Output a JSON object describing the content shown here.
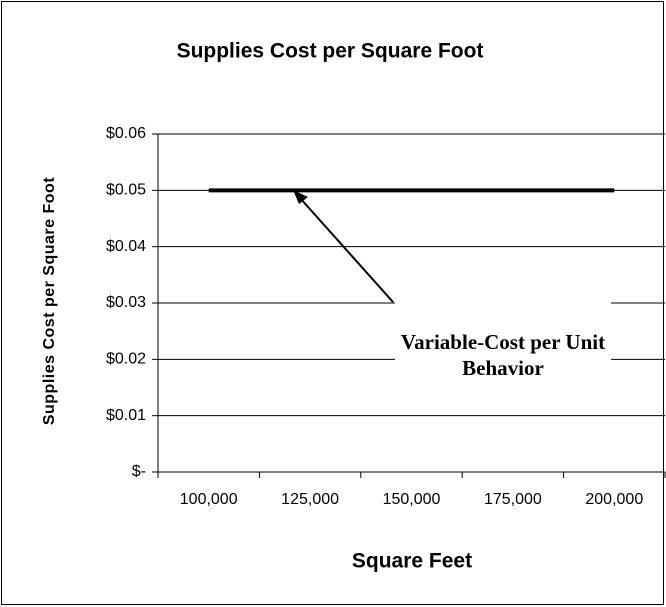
{
  "chart_data": {
    "type": "line",
    "title": "Supplies Cost per Square Foot",
    "x_label": "Square Feet",
    "y_label": "Supplies Cost per Square Foot",
    "categories": [
      "100,000",
      "125,000",
      "150,000",
      "175,000",
      "200,000"
    ],
    "series": [
      {
        "name": "Supplies Cost per Square Foot",
        "color": "#000000",
        "values": [
          0.05,
          0.05,
          0.05,
          0.05,
          0.05
        ]
      }
    ],
    "ylim": [
      0,
      0.06
    ],
    "yticks": [
      {
        "value": 0,
        "label": "$-"
      },
      {
        "value": 0.01,
        "label": "$0.01"
      },
      {
        "value": 0.02,
        "label": "$0.02"
      },
      {
        "value": 0.03,
        "label": "$0.03"
      },
      {
        "value": 0.04,
        "label": "$0.04"
      },
      {
        "value": 0.05,
        "label": "$0.05"
      },
      {
        "value": 0.06,
        "label": "$0.06"
      }
    ],
    "grid": true,
    "annotation": "Variable-Cost per Unit Behavior"
  }
}
